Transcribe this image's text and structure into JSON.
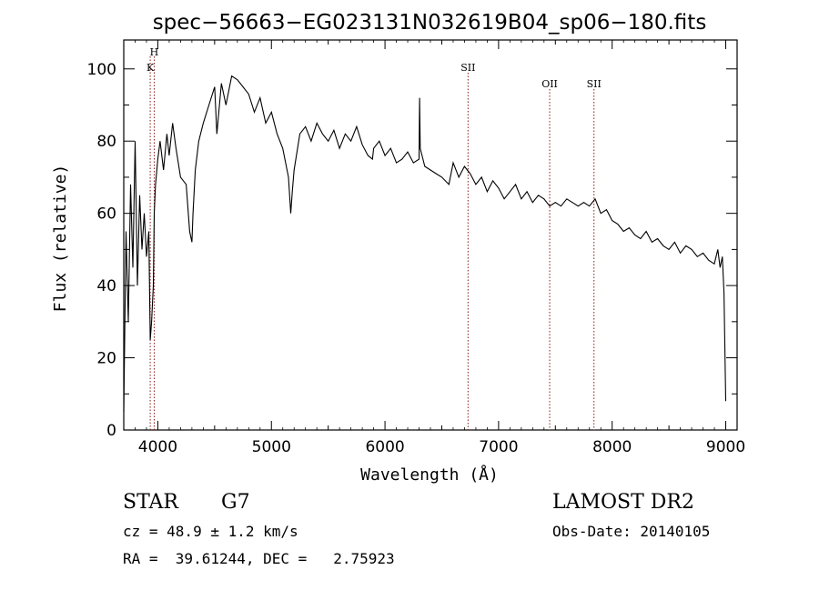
{
  "chart_data": {
    "type": "line",
    "title": "spec−56663−EG023131N032619B04_sp06−180.fits",
    "xlabel": "Wavelength (Å)",
    "ylabel": "Flux (relative)",
    "xlim": [
      3700,
      9100
    ],
    "ylim": [
      0,
      108
    ],
    "x_ticks": [
      4000,
      5000,
      6000,
      7000,
      8000,
      9000
    ],
    "y_ticks": [
      0,
      20,
      40,
      60,
      80,
      100
    ],
    "grid": false,
    "line_color": "#000000",
    "marker_color": "#8b1a1a",
    "series": [
      {
        "x": [
          3700,
          3720,
          3740,
          3760,
          3780,
          3800,
          3820,
          3840,
          3860,
          3880,
          3900,
          3920,
          3933,
          3945,
          3960,
          3968,
          3980,
          4000,
          4020,
          4050,
          4080,
          4100,
          4130,
          4160,
          4200,
          4250,
          4280,
          4300,
          4310,
          4330,
          4360,
          4400,
          4450,
          4500,
          4520,
          4560,
          4600,
          4650,
          4700,
          4750,
          4800,
          4850,
          4900,
          4950,
          5000,
          5050,
          5100,
          5150,
          5170,
          5184,
          5200,
          5250,
          5300,
          5350,
          5400,
          5450,
          5500,
          5550,
          5600,
          5650,
          5700,
          5750,
          5800,
          5850,
          5890,
          5900,
          5950,
          6000,
          6050,
          6100,
          6150,
          6200,
          6250,
          6300,
          6305,
          6310,
          6350,
          6400,
          6450,
          6500,
          6563,
          6600,
          6650,
          6700,
          6750,
          6800,
          6850,
          6900,
          6950,
          7000,
          7050,
          7100,
          7150,
          7200,
          7250,
          7300,
          7350,
          7400,
          7450,
          7500,
          7550,
          7600,
          7650,
          7700,
          7750,
          7800,
          7850,
          7900,
          7950,
          8000,
          8050,
          8100,
          8150,
          8200,
          8250,
          8300,
          8350,
          8400,
          8450,
          8500,
          8550,
          8600,
          8650,
          8700,
          8750,
          8800,
          8850,
          8900,
          8930,
          8950,
          8970,
          8985,
          9000
        ],
        "y": [
          5,
          55,
          30,
          68,
          45,
          80,
          40,
          65,
          50,
          60,
          48,
          55,
          25,
          30,
          40,
          60,
          68,
          75,
          80,
          72,
          82,
          76,
          85,
          78,
          70,
          68,
          55,
          52,
          60,
          72,
          80,
          85,
          90,
          95,
          82,
          96,
          90,
          98,
          97,
          95,
          93,
          88,
          92,
          85,
          88,
          82,
          78,
          70,
          60,
          66,
          72,
          82,
          84,
          80,
          85,
          82,
          80,
          83,
          78,
          82,
          80,
          84,
          79,
          76,
          75,
          78,
          80,
          76,
          78,
          74,
          75,
          77,
          74,
          75,
          92,
          78,
          73,
          72,
          71,
          70,
          68,
          74,
          70,
          73,
          71,
          68,
          70,
          66,
          69,
          67,
          64,
          66,
          68,
          64,
          66,
          63,
          65,
          64,
          62,
          63,
          62,
          64,
          63,
          62,
          63,
          62,
          64,
          60,
          61,
          58,
          57,
          55,
          56,
          54,
          53,
          55,
          52,
          53,
          51,
          50,
          52,
          49,
          51,
          50,
          48,
          49,
          47,
          46,
          50,
          45,
          48,
          38,
          8
        ]
      }
    ],
    "markers": [
      {
        "label": "H",
        "x": 3968
      },
      {
        "label": "K",
        "x": 3933
      },
      {
        "label": "SII",
        "x": 6731
      },
      {
        "label": "OII",
        "x": 7450
      },
      {
        "label": "SII",
        "x": 7840
      }
    ]
  },
  "info": {
    "type_label": "STAR",
    "subclass": "G7",
    "survey": "LAMOST DR2",
    "cz_line": "cz = 48.9 ± 1.2 km/s",
    "obs_date": "Obs-Date: 20140105",
    "coords": "RA =  39.61244, DEC =   2.75923"
  }
}
